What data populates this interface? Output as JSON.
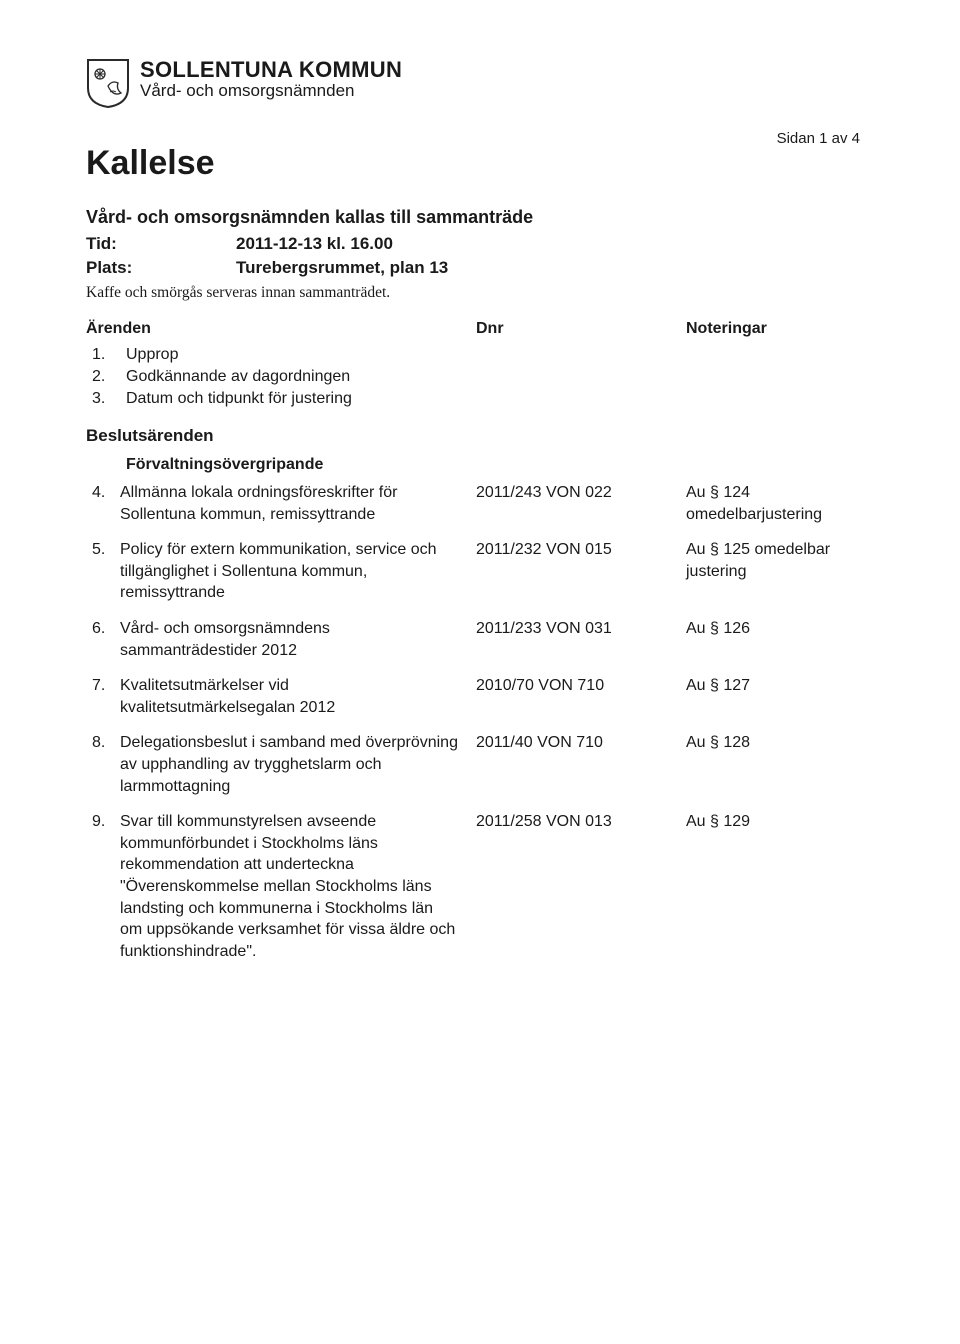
{
  "org": {
    "name": "SOLLENTUNA KOMMUN",
    "dept": "Vård- och omsorgsnämnden"
  },
  "pageIndicator": "Sidan 1 av 4",
  "docTitle": "Kallelse",
  "intro": {
    "heading": "Vård- och omsorgsnämnden kallas till sammanträde",
    "tidLabel": "Tid:",
    "tidValue": "2011-12-13 kl. 16.00",
    "platsLabel": "Plats:",
    "platsValue": "Turebergsrummet, plan 13",
    "kaffe": "Kaffe och smörgås serveras innan sammanträdet."
  },
  "columnHeaders": {
    "c1": "Ärenden",
    "c2": "Dnr",
    "c3": "Noteringar"
  },
  "prelimItems": [
    "Upprop",
    "Godkännande av dagordningen",
    "Datum och tidpunkt för justering"
  ],
  "sectionHeading": "Beslutsärenden",
  "subHeading": "Förvaltningsövergripande",
  "items": [
    {
      "n": "4.",
      "desc": "Allmänna lokala ordningsföreskrifter för Sollentuna kommun, remissyttrande",
      "dnr": "2011/243 VON 022",
      "note": "Au § 124 omedelbarjustering"
    },
    {
      "n": "5.",
      "desc": "Policy för extern kommunikation, service och tillgänglighet i Sollentuna kommun, remissyttrande",
      "dnr": "2011/232 VON 015",
      "note": "Au § 125 omedelbar justering"
    },
    {
      "n": "6.",
      "desc": "Vård- och omsorgsnämndens sammanträdestider 2012",
      "dnr": "2011/233 VON 031",
      "note": "Au § 126"
    },
    {
      "n": "7.",
      "desc": "Kvalitetsutmärkelser vid kvalitetsutmärkelsegalan 2012",
      "dnr": "2010/70 VON 710",
      "note": "Au § 127"
    },
    {
      "n": "8.",
      "desc": "Delegationsbeslut i samband med överprövning av upphandling av trygghetslarm och larmmottagning",
      "dnr": "2011/40 VON 710",
      "note": "Au § 128"
    },
    {
      "n": "9.",
      "desc": "Svar till kommunstyrelsen avseende kommunförbundet i Stockholms läns rekommendation att underteckna \"Överenskommelse mellan Stockholms läns landsting och kommunerna i Stockholms län om uppsökande verksamhet för vissa äldre och funktionshindrade\".",
      "dnr": "2011/258 VON 013",
      "note": "Au § 129"
    }
  ]
}
